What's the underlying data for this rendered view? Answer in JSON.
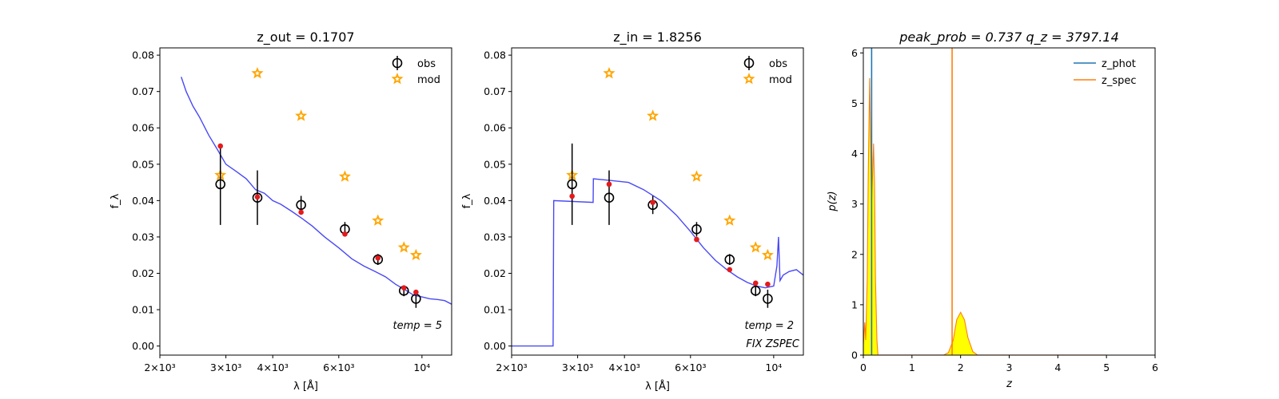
{
  "chart_data": [
    {
      "type": "scatter",
      "title": "z_out = 0.1707",
      "xlabel": "λ [Å]",
      "ylabel": "f_λ",
      "x_scale": "log",
      "xlim": [
        2000,
        12000
      ],
      "ylim": [
        -0.0025,
        0.082
      ],
      "x_ticks": [
        {
          "value": 2000,
          "label": "2×10³"
        },
        {
          "value": 3000,
          "label": "3×10³"
        },
        {
          "value": 4000,
          "label": "4×10³"
        },
        {
          "value": 6000,
          "label": "6×10³"
        },
        {
          "value": 10000,
          "label": "10⁴"
        }
      ],
      "y_ticks": [
        "0.00",
        "0.01",
        "0.02",
        "0.03",
        "0.04",
        "0.05",
        "0.06",
        "0.07",
        "0.08"
      ],
      "annotation": "temp = 5",
      "legend": {
        "position": "top-right",
        "entries": [
          "obs",
          "mod"
        ]
      },
      "series": [
        {
          "name": "obs",
          "x": [
            2900,
            3640,
            4760,
            6230,
            7630,
            8950,
            9640
          ],
          "y": [
            0.0445,
            0.0408,
            0.0388,
            0.0321,
            0.0238,
            0.0152,
            0.013
          ],
          "yerr": [
            0.0112,
            0.0075,
            0.0025,
            0.002,
            0.0015,
            0.0015,
            0.0025
          ]
        },
        {
          "name": "mod",
          "x": [
            2900,
            3640,
            4760,
            6230,
            7630,
            8950,
            9640
          ],
          "y": [
            0.047,
            0.075,
            0.0633,
            0.0466,
            0.0345,
            0.0271,
            0.025
          ]
        },
        {
          "x": [
            2900,
            3640,
            4760,
            6230,
            7630,
            8950,
            9640
          ],
          "y": [
            0.055,
            0.041,
            0.0368,
            0.0308,
            0.0242,
            0.016,
            0.0148
          ]
        },
        {
          "x": [
            2280,
            2350,
            2450,
            2550,
            2700,
            2850,
            3000,
            3200,
            3400,
            3600,
            3800,
            4000,
            4200,
            4500,
            4800,
            5100,
            5500,
            6000,
            6500,
            7000,
            7500,
            8000,
            8500,
            9000,
            9500,
            10000,
            10500,
            11000,
            11500,
            12000
          ],
          "y": [
            0.074,
            0.07,
            0.066,
            0.063,
            0.058,
            0.054,
            0.05,
            0.048,
            0.046,
            0.043,
            0.042,
            0.04,
            0.039,
            0.037,
            0.035,
            0.033,
            0.03,
            0.027,
            0.024,
            0.022,
            0.0205,
            0.019,
            0.017,
            0.0155,
            0.014,
            0.0135,
            0.013,
            0.0128,
            0.0125,
            0.0115
          ]
        }
      ]
    },
    {
      "type": "scatter",
      "title": "z_in = 1.8256",
      "xlabel": "λ [Å]",
      "ylabel": "f_λ",
      "x_scale": "log",
      "xlim": [
        2000,
        12000
      ],
      "ylim": [
        -0.0025,
        0.082
      ],
      "x_ticks": [
        {
          "value": 2000,
          "label": "2×10³"
        },
        {
          "value": 3000,
          "label": "3×10³"
        },
        {
          "value": 4000,
          "label": "4×10³"
        },
        {
          "value": 6000,
          "label": "6×10³"
        },
        {
          "value": 10000,
          "label": "10⁴"
        }
      ],
      "y_ticks": [
        "0.00",
        "0.01",
        "0.02",
        "0.03",
        "0.04",
        "0.05",
        "0.06",
        "0.07",
        "0.08"
      ],
      "annotation": "temp = 2",
      "annotation2": "FIX ZSPEC",
      "legend": {
        "position": "top-right",
        "entries": [
          "obs",
          "mod"
        ]
      },
      "series": [
        {
          "name": "obs",
          "x": [
            2900,
            3640,
            4760,
            6230,
            7630,
            8950,
            9640
          ],
          "y": [
            0.0445,
            0.0408,
            0.0388,
            0.0321,
            0.0238,
            0.0152,
            0.013
          ],
          "yerr": [
            0.0112,
            0.0075,
            0.0025,
            0.002,
            0.0015,
            0.0015,
            0.0025
          ]
        },
        {
          "name": "mod",
          "x": [
            2900,
            3640,
            4760,
            6230,
            7630,
            8950,
            9640
          ],
          "y": [
            0.047,
            0.075,
            0.0633,
            0.0466,
            0.0345,
            0.0271,
            0.025
          ]
        },
        {
          "x": [
            2900,
            3640,
            4760,
            6230,
            7630,
            8950,
            9640
          ],
          "y": [
            0.0412,
            0.0445,
            0.0395,
            0.0293,
            0.021,
            0.0173,
            0.017
          ]
        },
        {
          "x": [
            2000,
            2580,
            2590,
            3300,
            3305,
            3700,
            4100,
            4500,
            5000,
            5500,
            6000,
            6500,
            7000,
            7500,
            8000,
            8500,
            9000,
            9500,
            10000,
            10200,
            10300,
            10400,
            10600,
            11000,
            11500,
            12000
          ],
          "y": [
            0.0,
            0.0,
            0.04,
            0.0395,
            0.046,
            0.0455,
            0.045,
            0.043,
            0.04,
            0.036,
            0.0315,
            0.027,
            0.0235,
            0.021,
            0.019,
            0.0175,
            0.0165,
            0.016,
            0.0165,
            0.022,
            0.03,
            0.018,
            0.0195,
            0.0205,
            0.021,
            0.0195
          ]
        }
      ]
    },
    {
      "type": "area",
      "title": "peak_prob = 0.737     q_z = 3797.14",
      "xlabel": "z",
      "ylabel": "p(z)",
      "xlim": [
        0,
        6
      ],
      "ylim": [
        0,
        6.1
      ],
      "x_ticks": [
        "0",
        "1",
        "2",
        "3",
        "4",
        "5",
        "6"
      ],
      "y_ticks": [
        "0",
        "1",
        "2",
        "3",
        "4",
        "5",
        "6"
      ],
      "legend": {
        "position": "top-right",
        "entries": [
          "z_phot",
          "z_spec"
        ]
      },
      "z_phot": 0.1707,
      "z_spec": 1.8256,
      "series": [
        {
          "x": [
            0.0,
            0.03,
            0.05,
            0.08,
            0.1,
            0.13,
            0.15,
            0.17,
            0.19,
            0.21,
            0.23,
            0.25,
            0.28,
            0.3
          ],
          "y": [
            0.2,
            0.65,
            0.3,
            1.5,
            3.5,
            5.5,
            4.2,
            3.0,
            3.6,
            4.2,
            3.4,
            1.5,
            0.3,
            0.0
          ]
        },
        {
          "x": [
            1.65,
            1.75,
            1.85,
            1.92,
            2.0,
            2.08,
            2.15,
            2.25,
            2.35
          ],
          "y": [
            0.0,
            0.05,
            0.3,
            0.7,
            0.85,
            0.7,
            0.35,
            0.07,
            0.0
          ]
        }
      ]
    }
  ],
  "colors": {
    "sed": "#4949f5",
    "obs": "#000000",
    "mod": "#ffa500",
    "pred": "#e41a1c",
    "z_phot": "#1f77b4",
    "z_spec": "#ff7f0e",
    "pdf_fill": "#ffff00"
  }
}
